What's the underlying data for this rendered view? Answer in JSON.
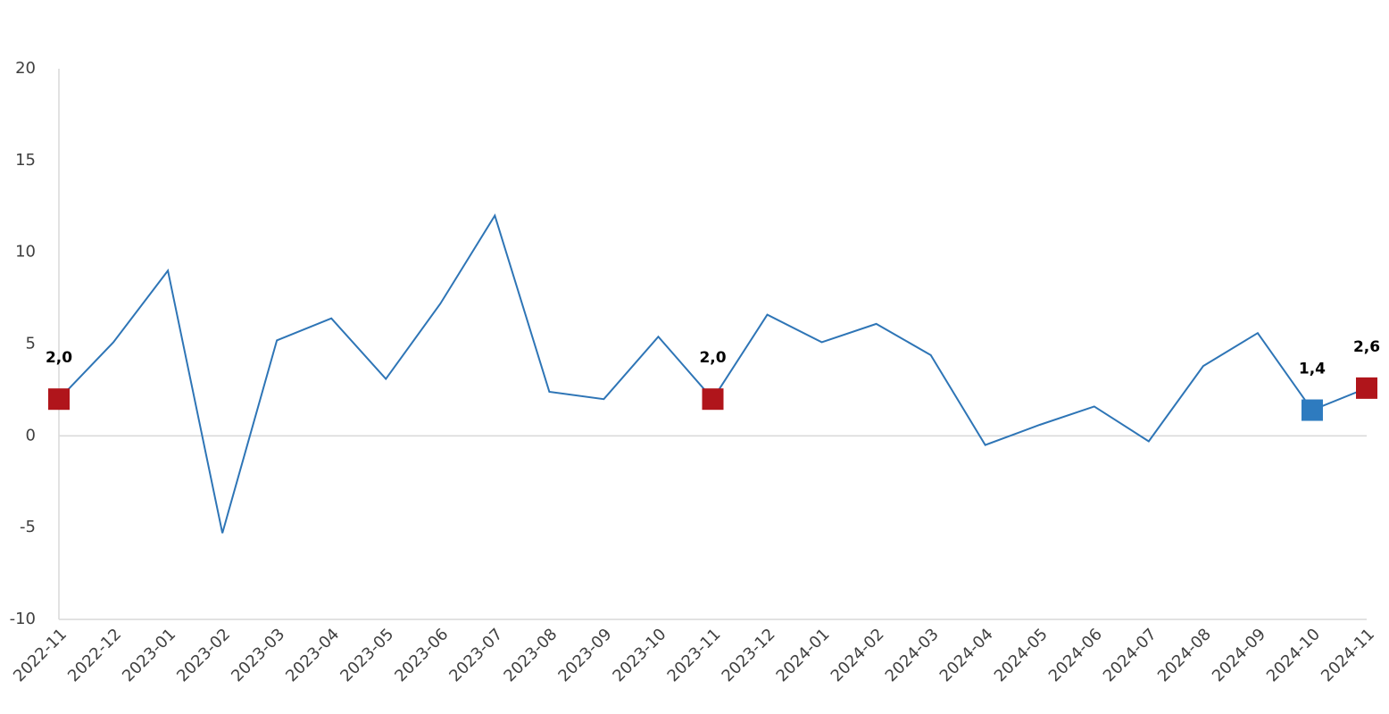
{
  "chart_data": {
    "type": "line",
    "x": [
      "2022-11",
      "2022-12",
      "2023-01",
      "2023-02",
      "2023-03",
      "2023-04",
      "2023-05",
      "2023-06",
      "2023-07",
      "2023-08",
      "2023-09",
      "2023-10",
      "2023-11",
      "2023-12",
      "2024-01",
      "2024-02",
      "2024-03",
      "2024-04",
      "2024-05",
      "2024-06",
      "2024-07",
      "2024-08",
      "2024-09",
      "2024-10",
      "2024-11"
    ],
    "series": [
      {
        "color": "#2e75b6",
        "values": [
          2.0,
          5.1,
          9.0,
          -5.3,
          5.2,
          6.4,
          3.1,
          7.2,
          12.0,
          2.4,
          2.0,
          5.4,
          2.0,
          6.6,
          5.1,
          6.1,
          4.4,
          -0.5,
          0.6,
          1.6,
          -0.3,
          3.8,
          5.6,
          1.4,
          2.6
        ],
        "value_labels": [
          "2,0",
          null,
          null,
          null,
          null,
          null,
          null,
          null,
          null,
          null,
          null,
          null,
          "2,0",
          null,
          null,
          null,
          null,
          null,
          null,
          null,
          null,
          null,
          null,
          "1,4",
          "2,6"
        ],
        "marker_colors": [
          "#b0151b",
          null,
          null,
          null,
          null,
          null,
          null,
          null,
          null,
          null,
          null,
          null,
          "#b0151b",
          null,
          null,
          null,
          null,
          null,
          null,
          null,
          null,
          null,
          null,
          "#2e7bbf",
          "#b0151b"
        ]
      }
    ],
    "ylim": [
      -10,
      20
    ],
    "yticks": [
      -10,
      -5,
      0,
      5,
      10,
      15,
      20
    ]
  }
}
